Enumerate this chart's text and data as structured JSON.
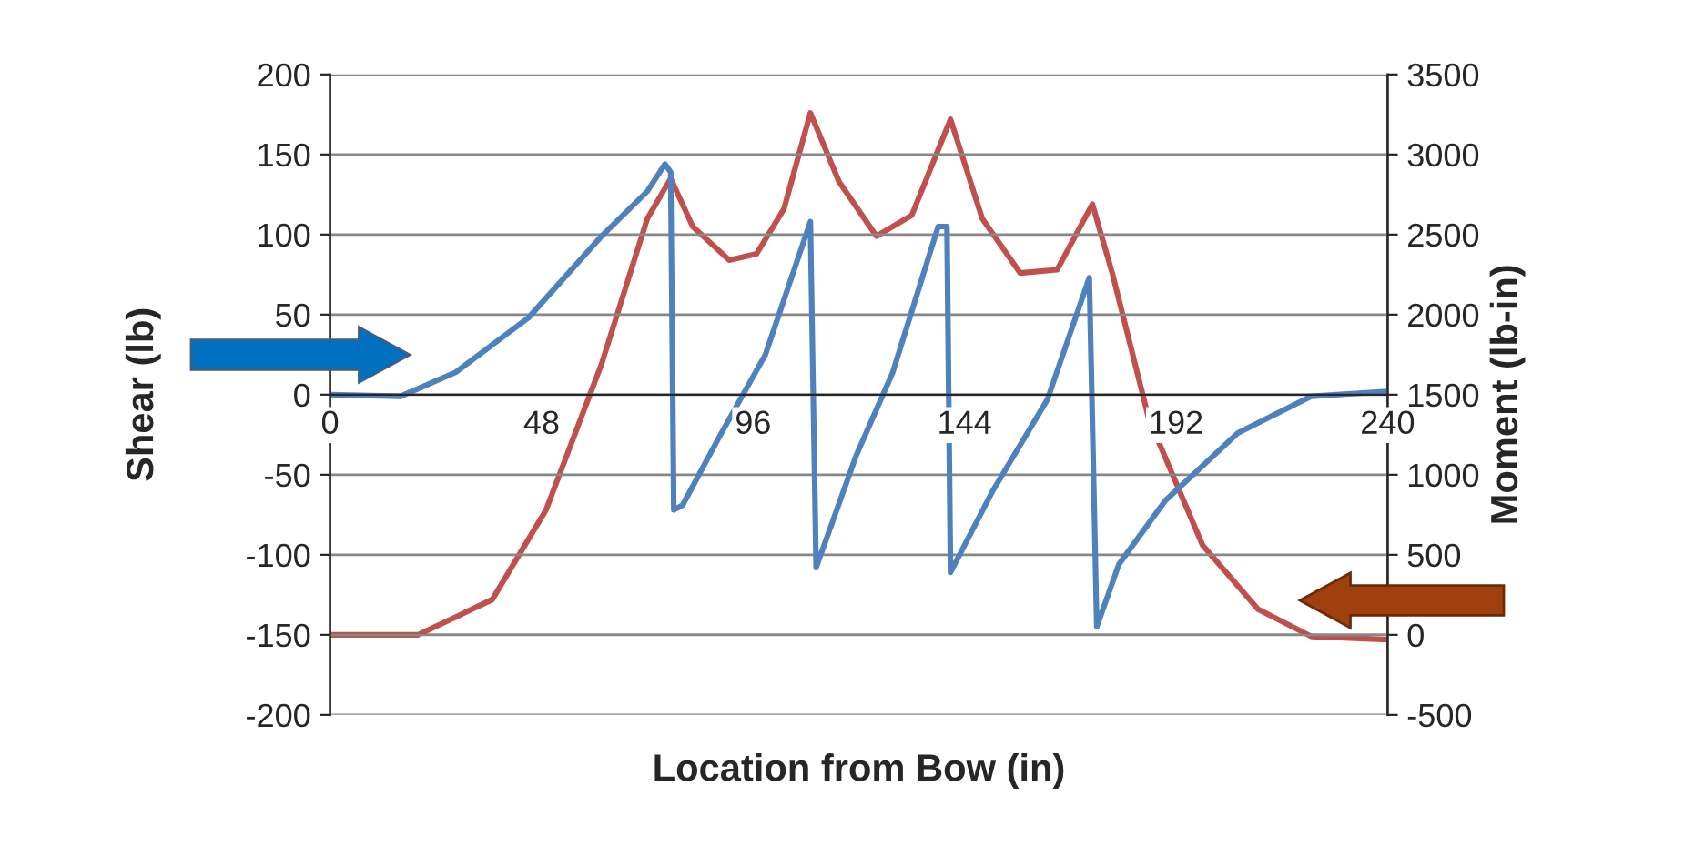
{
  "chart_data": {
    "type": "line",
    "xlabel": "Location from Bow (in)",
    "ylabel": "Shear (lb)",
    "y2label": "Moment (lb-in)",
    "xlim": [
      0,
      240
    ],
    "xticks": [
      0,
      48,
      96,
      144,
      192,
      240
    ],
    "ylim": [
      -200,
      200
    ],
    "yticks": [
      -200,
      -150,
      -100,
      -50,
      0,
      50,
      100,
      150,
      200
    ],
    "y2lim": [
      -500,
      3500
    ],
    "y2ticks": [
      -500,
      0,
      500,
      1000,
      1500,
      2000,
      2500,
      3000,
      3500
    ],
    "grid": "y",
    "line_style": "solid",
    "marker": "none",
    "series": [
      {
        "color": "#4f81bd",
        "x": [
          0,
          16,
          28.5,
          45,
          61.6,
          72,
          76,
          77.3,
          78,
          80,
          88.4,
          98.8,
          109,
          110.3,
          119.4,
          127.7,
          138,
          140,
          140.8,
          150.4,
          162.8,
          172.3,
          174,
          179,
          189.6,
          206,
          222.7,
          240
        ],
        "values": [
          0,
          -1,
          14,
          48,
          99,
          127,
          144,
          139,
          -72,
          -69,
          -26,
          25,
          108,
          -108,
          -38,
          14,
          105,
          105,
          -111,
          -60,
          -3,
          73,
          -145,
          -106,
          -66,
          -24,
          -1,
          2
        ]
      },
      {
        "color": "#c0504d",
        "axis": "y2",
        "x": [
          0,
          20,
          36.8,
          49,
          61.6,
          72,
          77.3,
          82.3,
          90.6,
          96.8,
          103,
          109,
          115.5,
          124,
          132,
          140.8,
          148,
          156.6,
          165,
          173,
          177.5,
          185.8,
          198,
          210.6,
          222.7,
          240
        ],
        "values": [
          0,
          0,
          220,
          780,
          1690,
          2600,
          2850,
          2550,
          2340,
          2380,
          2660,
          3260,
          2830,
          2490,
          2620,
          3220,
          2600,
          2260,
          2280,
          2690,
          2260,
          1350,
          560,
          160,
          -10,
          -30
        ]
      }
    ]
  }
}
